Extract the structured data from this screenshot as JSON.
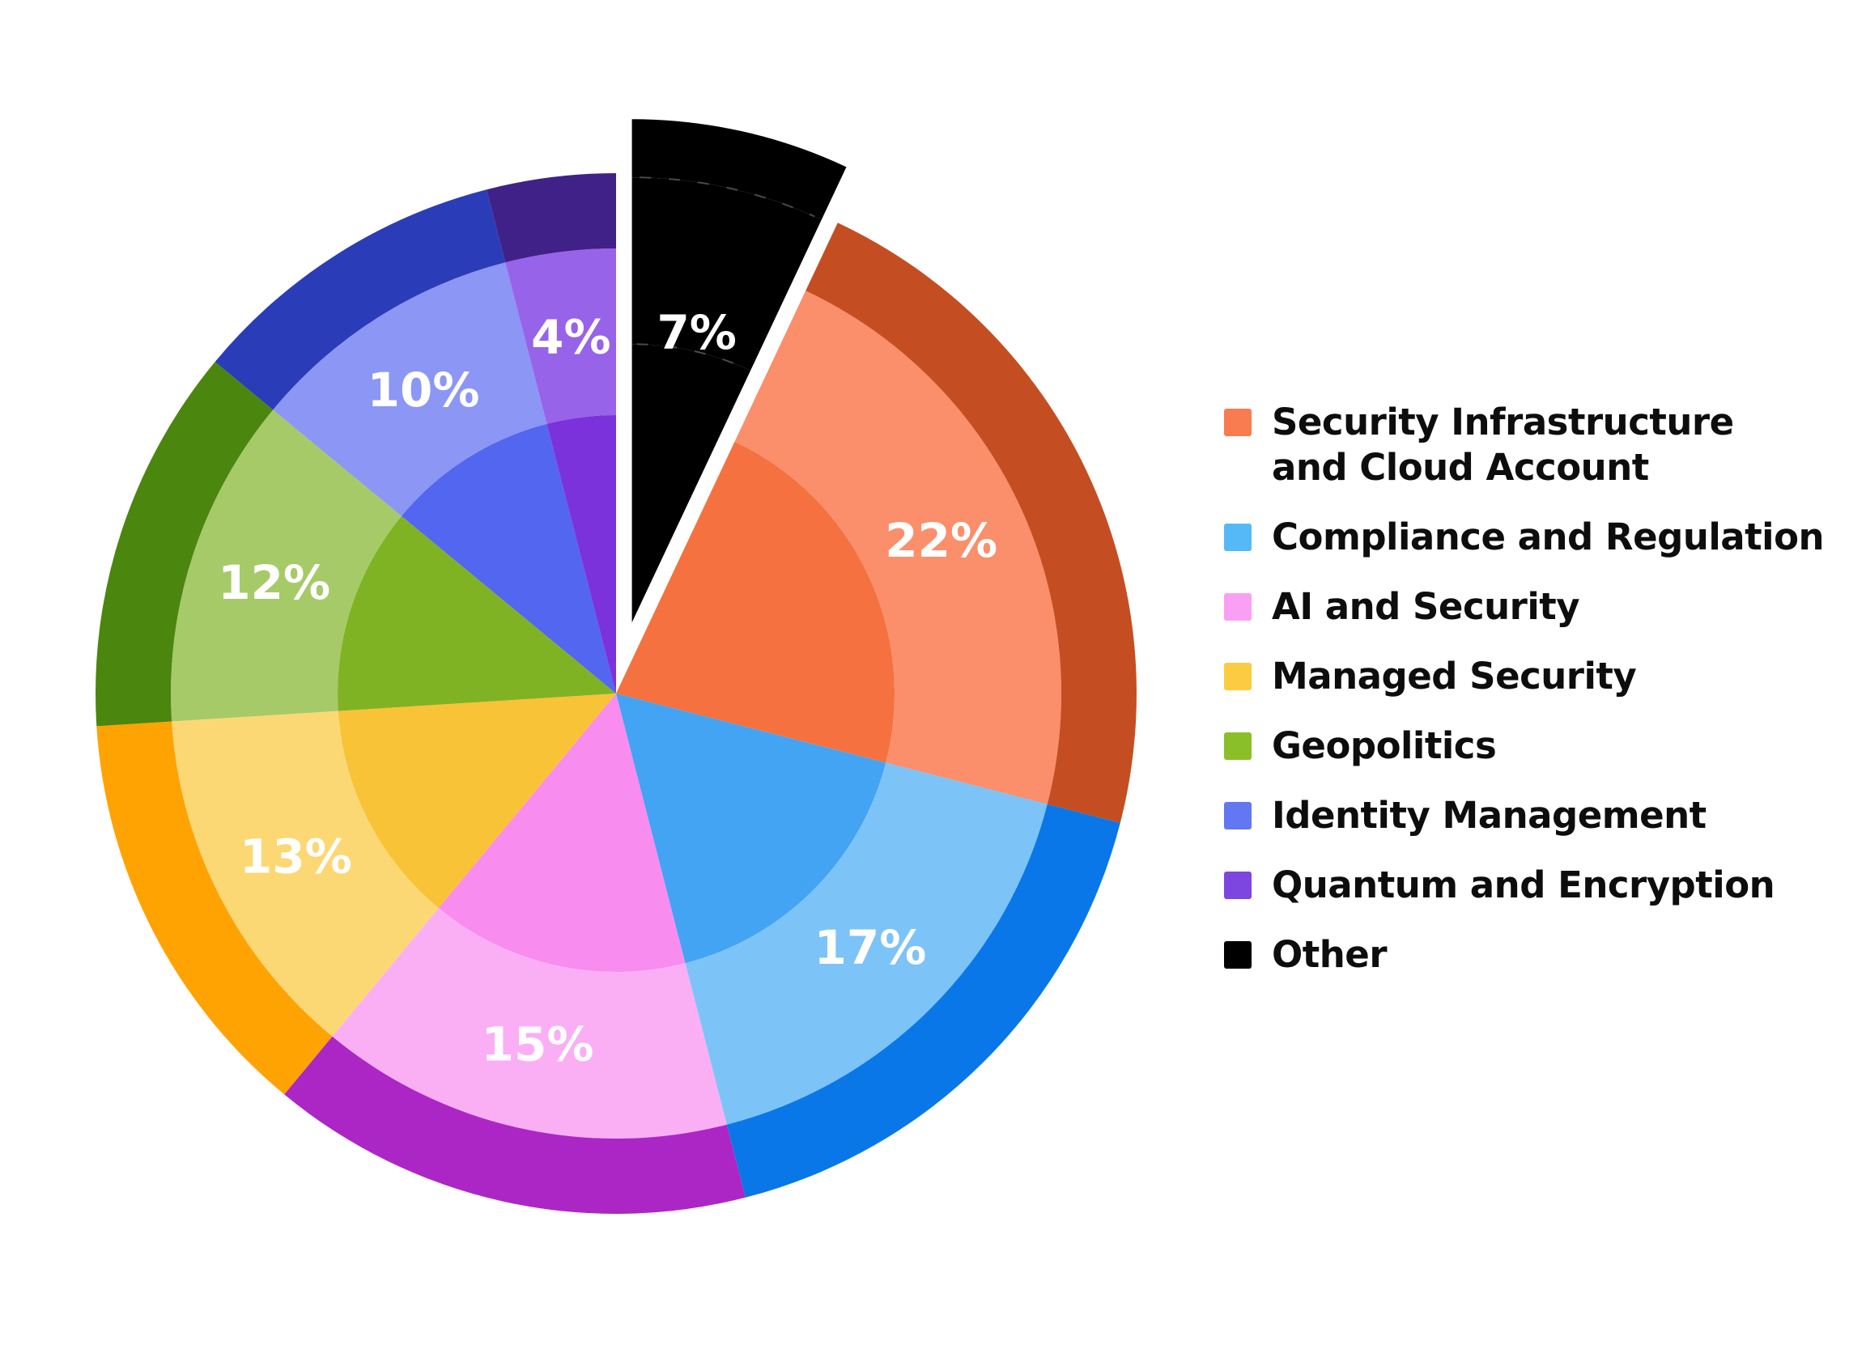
{
  "page": {
    "background": "#ffffff",
    "label_text_color": "#ffffff",
    "legend_text_color": "#0d0d0d"
  },
  "chart_data": {
    "type": "pie",
    "title": "",
    "units": "%",
    "direction": "clockwise",
    "start_angle_deg": 0,
    "legend_position": "right",
    "grid": false,
    "slices": [
      {
        "id": "other",
        "label": "Other",
        "value": 7,
        "label_text": "7%",
        "exploded": true,
        "colors": {
          "inner": "#000000",
          "mid": "#000000",
          "outer": "#000000",
          "legend": "#000000"
        },
        "dash_color": "#4a4a4a"
      },
      {
        "id": "security",
        "label": "Security Infrastructure and Cloud Account",
        "legend_lines": [
          "Security Infrastructure",
          "and Cloud Account"
        ],
        "value": 22,
        "label_text": "22%",
        "exploded": false,
        "colors": {
          "inner": "#F5713F",
          "mid": "#FB8E6B",
          "outer": "#C44E22",
          "legend": "#F87C50"
        }
      },
      {
        "id": "compliance",
        "label": "Compliance and Regulation",
        "legend_lines": [
          "Compliance and Regulation"
        ],
        "value": 17,
        "label_text": "17%",
        "exploded": false,
        "colors": {
          "inner": "#42A4F2",
          "mid": "#7CC3F8",
          "outer": "#0A77E8",
          "legend": "#55B9F7"
        }
      },
      {
        "id": "ai",
        "label": "AI and Security",
        "legend_lines": [
          "AI and Security"
        ],
        "value": 15,
        "label_text": "15%",
        "exploded": false,
        "colors": {
          "inner": "#F88CEF",
          "mid": "#FAAFF5",
          "outer": "#AC26C6",
          "legend": "#F9A0F4"
        }
      },
      {
        "id": "managed",
        "label": "Managed Security",
        "legend_lines": [
          "Managed Security"
        ],
        "value": 13,
        "label_text": "13%",
        "exploded": false,
        "colors": {
          "inner": "#F9C337",
          "mid": "#FCD875",
          "outer": "#FFA302",
          "legend": "#FBCB42"
        }
      },
      {
        "id": "geopolitics",
        "label": "Geopolitics",
        "legend_lines": [
          "Geopolitics"
        ],
        "value": 12,
        "label_text": "12%",
        "exploded": false,
        "colors": {
          "inner": "#80B324",
          "mid": "#A6CA68",
          "outer": "#4B860E",
          "legend": "#8ABF2A"
        }
      },
      {
        "id": "identity",
        "label": "Identity Management",
        "legend_lines": [
          "Identity Management"
        ],
        "value": 10,
        "label_text": "10%",
        "exploded": false,
        "colors": {
          "inner": "#5366EF",
          "mid": "#8B96F5",
          "outer": "#2B3CB8",
          "legend": "#6277F2"
        }
      },
      {
        "id": "quantum",
        "label": "Quantum and Encryption",
        "legend_lines": [
          "Quantum and Encryption"
        ],
        "value": 4,
        "label_text": "4%",
        "exploded": false,
        "colors": {
          "inner": "#7B32DA",
          "mid": "#9763E9",
          "outer": "#402187",
          "legend": "#7D46E0"
        }
      }
    ],
    "legend_order": [
      "security",
      "compliance",
      "ai",
      "managed",
      "geopolitics",
      "identity",
      "quantum",
      "other"
    ]
  }
}
